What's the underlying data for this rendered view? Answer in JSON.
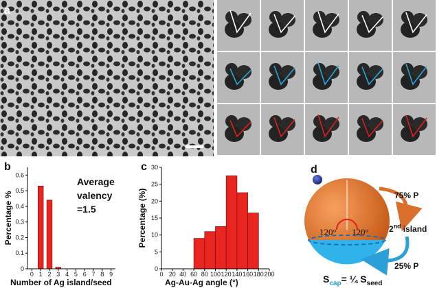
{
  "panels": {
    "a": "a",
    "b": "b",
    "c": "c",
    "d": "d"
  },
  "chart_data": [
    {
      "type": "bar",
      "xlabel": "Number of Ag island/seed",
      "ylabel": "Percentage %",
      "x": [
        1,
        2,
        3
      ],
      "values": [
        0.53,
        0.44,
        0.01
      ],
      "color": "#e8251e",
      "xlim": [
        -0.5,
        9.5
      ],
      "xticks": [
        0,
        1,
        2,
        3,
        4,
        5,
        6,
        7,
        8,
        9
      ],
      "ylim": [
        0,
        0.65
      ],
      "yticks": [
        0,
        0.1,
        0.2,
        0.3,
        0.4,
        0.5,
        0.6
      ],
      "annotation": [
        "Average",
        "valency",
        "=1.5"
      ]
    },
    {
      "type": "histogram",
      "xlabel": "Ag-Au-Ag angle (°)",
      "ylabel": "Percentage (%)",
      "bins": [
        60,
        80,
        100,
        120,
        140,
        160,
        180
      ],
      "values": [
        9,
        11,
        12.5,
        27.5,
        22.5,
        16.5
      ],
      "color": "#e8251e",
      "xlim": [
        0,
        200
      ],
      "xticks": [
        0,
        20,
        40,
        60,
        80,
        100,
        120,
        140,
        160,
        180,
        200
      ],
      "ylim": [
        0,
        30
      ],
      "yticks": [
        0,
        5,
        10,
        15,
        20,
        25,
        30
      ]
    }
  ],
  "diagram": {
    "upper_fraction": "75% P",
    "island_number": "2",
    "island_suffix": "nd",
    "island_word": "island",
    "lower_fraction": "25% P",
    "angle_left": "120°",
    "angle_right": "120°",
    "formula": {
      "s1": "S",
      "sub1": "cap",
      "mid": "= ¼ S",
      "sub2": "seed"
    }
  }
}
